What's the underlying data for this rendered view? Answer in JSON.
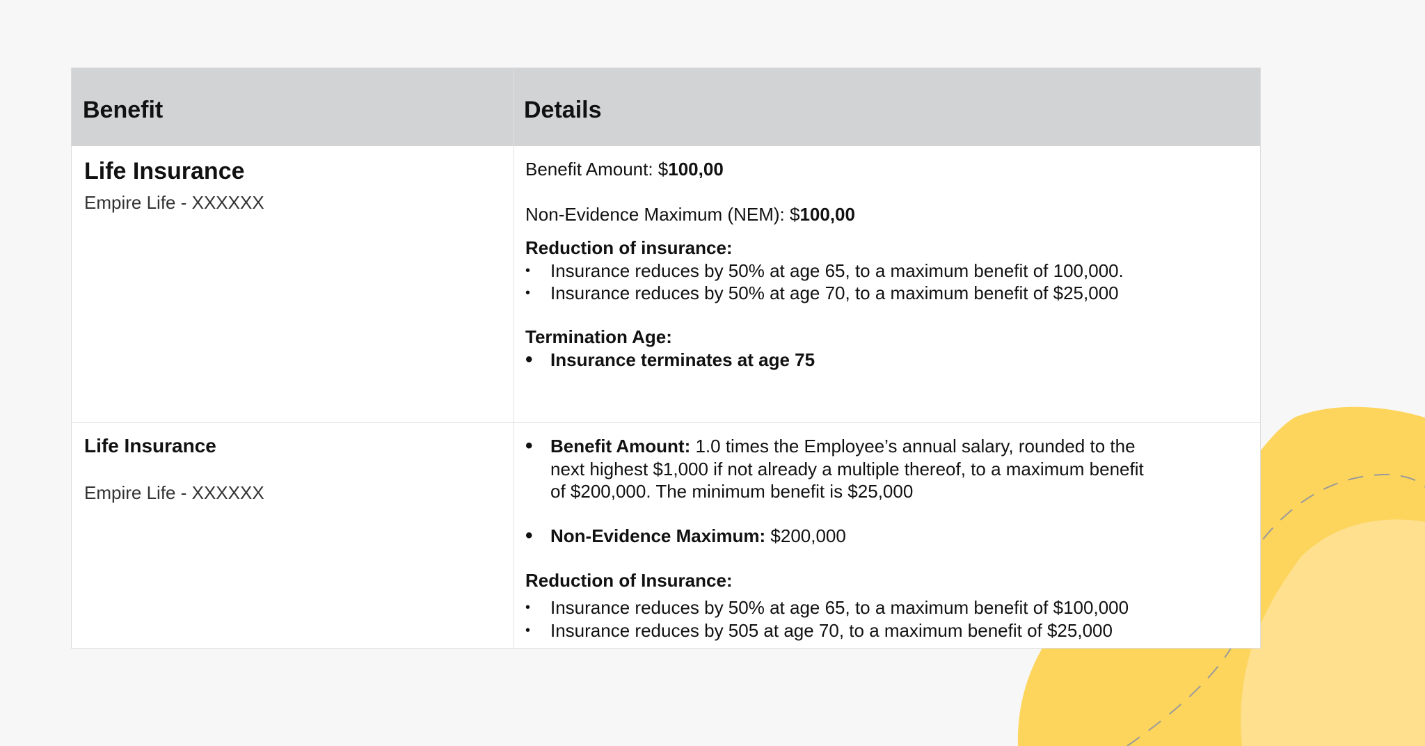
{
  "colors": {
    "header_bg": "#d2d3d5",
    "blob_dark": "#fdd55c",
    "blob_light": "#fee08f"
  },
  "table": {
    "headers": [
      "Benefit",
      "Details"
    ],
    "rows": [
      {
        "benefit_title": "Life Insurance",
        "benefit_subtitle": "Empire Life - XXXXXX",
        "benefit_amount_label": "Benefit Amount: $",
        "benefit_amount_value": "100,00",
        "nem_label": "Non-Evidence Maximum (NEM): $",
        "nem_value": "100,00",
        "reduction_heading": "Reduction of insurance:",
        "reduction_items": [
          "Insurance reduces by 50% at age 65, to a maximum benefit of 100,000.",
          "Insurance reduces by 50% at age 70, to a maximum benefit of $25,000"
        ],
        "termination_heading": "Termination Age:",
        "termination_items": [
          "Insurance terminates at age 75"
        ]
      },
      {
        "benefit_title": "Life Insurance",
        "benefit_subtitle": "Empire Life - XXXXXX",
        "benefit_amount_label": "Benefit Amount:",
        "benefit_amount_lines": [
          " 1.0 times the Employee’s annual salary, rounded to the",
          "next highest $1,000 if not already a multiple thereof, to a maximum benefit",
          "of $200,000. The minimum benefit is $25,000"
        ],
        "nem_label": "Non-Evidence Maximum:",
        "nem_value": " $200,000",
        "reduction_heading": "Reduction of Insurance:",
        "reduction_items": [
          "Insurance reduces by 50% at age 65, to a maximum benefit of $100,000",
          "Insurance reduces by 505 at age 70, to a maximum benefit of $25,000"
        ]
      }
    ]
  }
}
